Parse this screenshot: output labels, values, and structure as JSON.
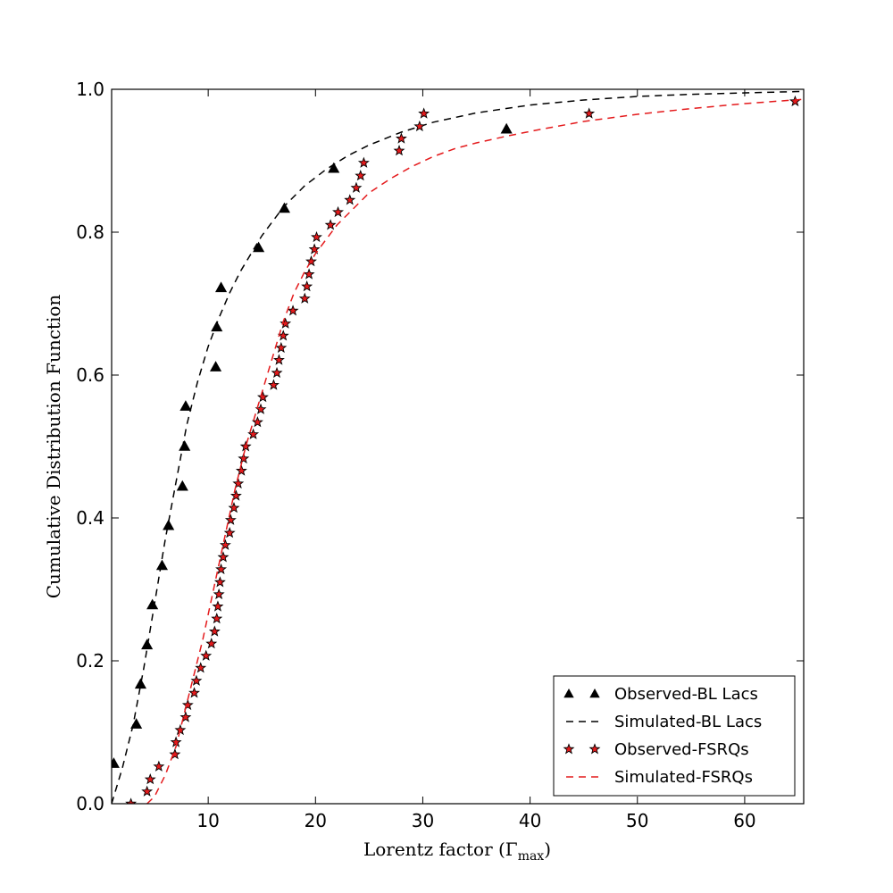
{
  "chart_data": {
    "type": "scatter",
    "xlabel": "Lorentz factor (Γ",
    "xlabel_sub": "max",
    "xlabel_close": ")",
    "ylabel": "Cumulative Distribution Function",
    "xlim": [
      1,
      65.5
    ],
    "ylim": [
      0,
      1
    ],
    "xticks": [
      10,
      20,
      30,
      40,
      50,
      60
    ],
    "yticks": [
      0.0,
      0.2,
      0.4,
      0.6,
      0.8,
      1.0
    ],
    "xtick_labels": [
      "10",
      "20",
      "30",
      "40",
      "50",
      "60"
    ],
    "ytick_labels": [
      "0.0",
      "0.2",
      "0.4",
      "0.6",
      "0.8",
      "1.0"
    ],
    "legend_position": "lower-right",
    "series": [
      {
        "name": "Observed-BL Lacs",
        "kind": "markers",
        "marker": "triangle",
        "color": "#000000",
        "x": [
          1.2,
          3.3,
          3.7,
          4.3,
          4.8,
          5.7,
          6.3,
          7.6,
          7.8,
          7.9,
          10.7,
          10.8,
          11.2,
          14.7,
          17.1,
          21.7,
          37.8
        ],
        "y": [
          0.056,
          0.111,
          0.167,
          0.222,
          0.278,
          0.333,
          0.389,
          0.444,
          0.5,
          0.556,
          0.611,
          0.667,
          0.722,
          0.778,
          0.833,
          0.889,
          0.944
        ]
      },
      {
        "name": "Simulated-BL Lacs",
        "kind": "line",
        "dash": "8,6",
        "color": "#000000",
        "x": [
          1.0,
          1.5,
          2.0,
          2.5,
          3.0,
          3.5,
          4.0,
          4.5,
          5.0,
          5.5,
          6.0,
          6.5,
          7.0,
          7.5,
          8.0,
          9.0,
          10.0,
          11.0,
          12.0,
          13.0,
          14.0,
          15.0,
          17.0,
          19.0,
          21.0,
          23.0,
          25.0,
          28.0,
          31.0,
          35.0,
          40.0,
          45.0,
          50.0,
          55.0,
          60.0,
          65.5
        ],
        "y": [
          0.0,
          0.025,
          0.05,
          0.08,
          0.11,
          0.15,
          0.19,
          0.235,
          0.28,
          0.325,
          0.37,
          0.41,
          0.45,
          0.49,
          0.53,
          0.59,
          0.64,
          0.68,
          0.715,
          0.745,
          0.77,
          0.795,
          0.835,
          0.865,
          0.888,
          0.907,
          0.922,
          0.94,
          0.954,
          0.967,
          0.978,
          0.985,
          0.99,
          0.993,
          0.995,
          0.997
        ]
      },
      {
        "name": "Observed-FSRQs",
        "kind": "markers",
        "marker": "star",
        "color": "#e41a1c",
        "edge": "#000000",
        "x": [
          2.8,
          4.3,
          4.6,
          5.4,
          6.9,
          7.0,
          7.4,
          7.9,
          8.1,
          8.7,
          8.9,
          9.3,
          9.8,
          10.3,
          10.6,
          10.8,
          10.9,
          11.0,
          11.1,
          11.2,
          11.4,
          11.6,
          12.0,
          12.1,
          12.4,
          12.6,
          12.8,
          13.1,
          13.3,
          13.5,
          14.2,
          14.6,
          14.9,
          15.1,
          16.1,
          16.4,
          16.6,
          16.8,
          17.0,
          17.2,
          17.9,
          19.0,
          19.2,
          19.4,
          19.6,
          19.9,
          20.1,
          21.4,
          22.1,
          23.2,
          23.8,
          24.2,
          24.5,
          27.8,
          28.0,
          29.7,
          30.1,
          45.5,
          64.7
        ],
        "y": [
          0.0,
          0.017,
          0.034,
          0.052,
          0.069,
          0.086,
          0.103,
          0.121,
          0.138,
          0.155,
          0.172,
          0.19,
          0.207,
          0.224,
          0.241,
          0.259,
          0.276,
          0.293,
          0.31,
          0.328,
          0.345,
          0.362,
          0.379,
          0.397,
          0.414,
          0.431,
          0.448,
          0.466,
          0.483,
          0.5,
          0.517,
          0.534,
          0.552,
          0.569,
          0.586,
          0.603,
          0.621,
          0.638,
          0.655,
          0.672,
          0.69,
          0.707,
          0.724,
          0.741,
          0.759,
          0.776,
          0.793,
          0.81,
          0.828,
          0.845,
          0.862,
          0.879,
          0.897,
          0.914,
          0.931,
          0.948,
          0.966,
          0.966,
          0.983
        ]
      },
      {
        "name": "Simulated-FSRQs",
        "kind": "line",
        "dash": "8,6",
        "color": "#e41a1c",
        "x": [
          4.3,
          5.0,
          5.5,
          6.0,
          6.5,
          7.0,
          7.5,
          8.0,
          8.5,
          9.0,
          9.5,
          10.0,
          10.5,
          11.0,
          11.5,
          12.0,
          12.5,
          13.0,
          13.5,
          14.0,
          14.5,
          15.0,
          15.5,
          16.0,
          16.5,
          17.0,
          17.5,
          18.0,
          19.0,
          20.0,
          21.0,
          22.0,
          23.0,
          24.0,
          25.0,
          27.0,
          29.0,
          31.0,
          33.0,
          35.0,
          38.0,
          41.0,
          45.0,
          50.0,
          55.0,
          60.0,
          65.5
        ],
        "y": [
          0.0,
          0.01,
          0.025,
          0.04,
          0.06,
          0.08,
          0.11,
          0.14,
          0.17,
          0.2,
          0.23,
          0.265,
          0.3,
          0.335,
          0.37,
          0.405,
          0.44,
          0.47,
          0.5,
          0.525,
          0.55,
          0.575,
          0.6,
          0.625,
          0.65,
          0.675,
          0.695,
          0.715,
          0.745,
          0.77,
          0.79,
          0.81,
          0.825,
          0.84,
          0.855,
          0.875,
          0.892,
          0.906,
          0.917,
          0.925,
          0.935,
          0.944,
          0.955,
          0.965,
          0.973,
          0.98,
          0.986
        ]
      }
    ]
  }
}
